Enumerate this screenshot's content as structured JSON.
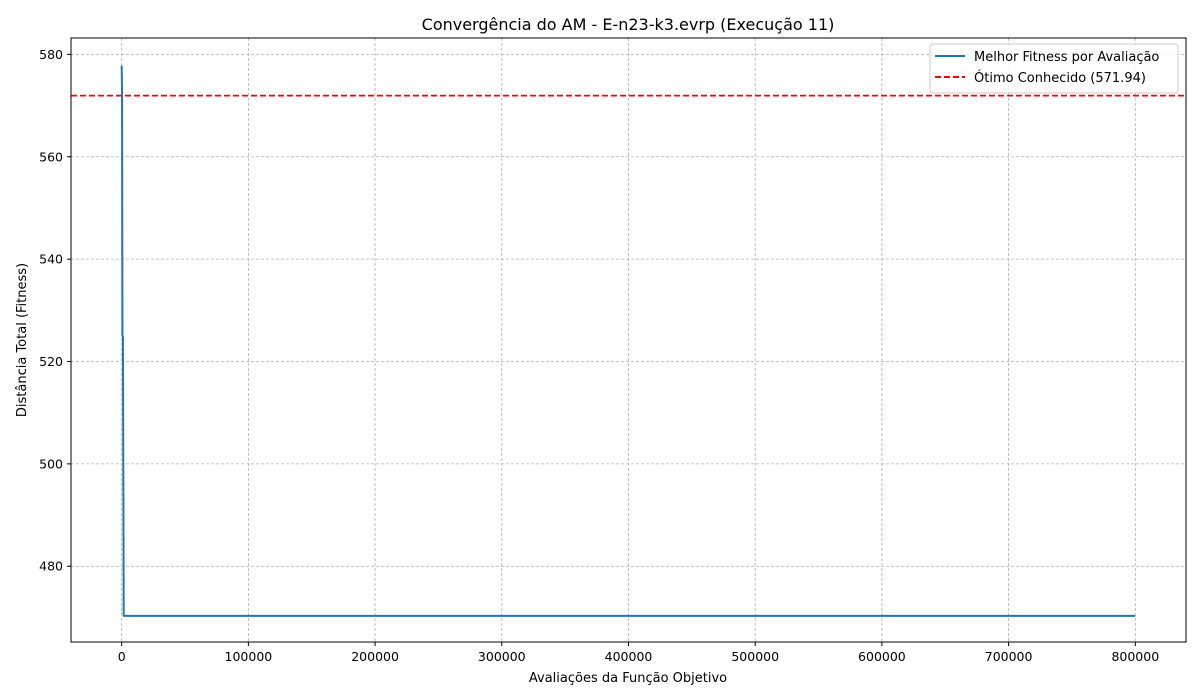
{
  "chart_data": {
    "type": "line",
    "title": "Convergência do AM - E-n23-k3.evrp (Execução 11)",
    "xlabel": "Avaliações da Função Objetivo",
    "ylabel": "Distância Total (Fitness)",
    "xlim": [
      -40000,
      840000
    ],
    "ylim": [
      465.2,
      583.2
    ],
    "xticks": [
      0,
      100000,
      200000,
      300000,
      400000,
      500000,
      600000,
      700000,
      800000
    ],
    "yticks": [
      480,
      500,
      520,
      540,
      560,
      580
    ],
    "grid": true,
    "legend_position": "top-right",
    "series": [
      {
        "name": "Melhor Fitness por Avaliação",
        "color": "#1f77b4",
        "style": "solid",
        "x": [
          0,
          300,
          600,
          800,
          1000,
          1200,
          1400,
          1600,
          2000,
          800000
        ],
        "y": [
          577.8,
          572,
          525,
          525,
          524.8,
          505,
          490,
          470.3,
          470.3,
          470.3
        ]
      }
    ],
    "reference_lines": [
      {
        "name": "Ótimo Conhecido (571.94)",
        "color": "#ff0000",
        "style": "dashed",
        "y": 571.94
      }
    ]
  }
}
